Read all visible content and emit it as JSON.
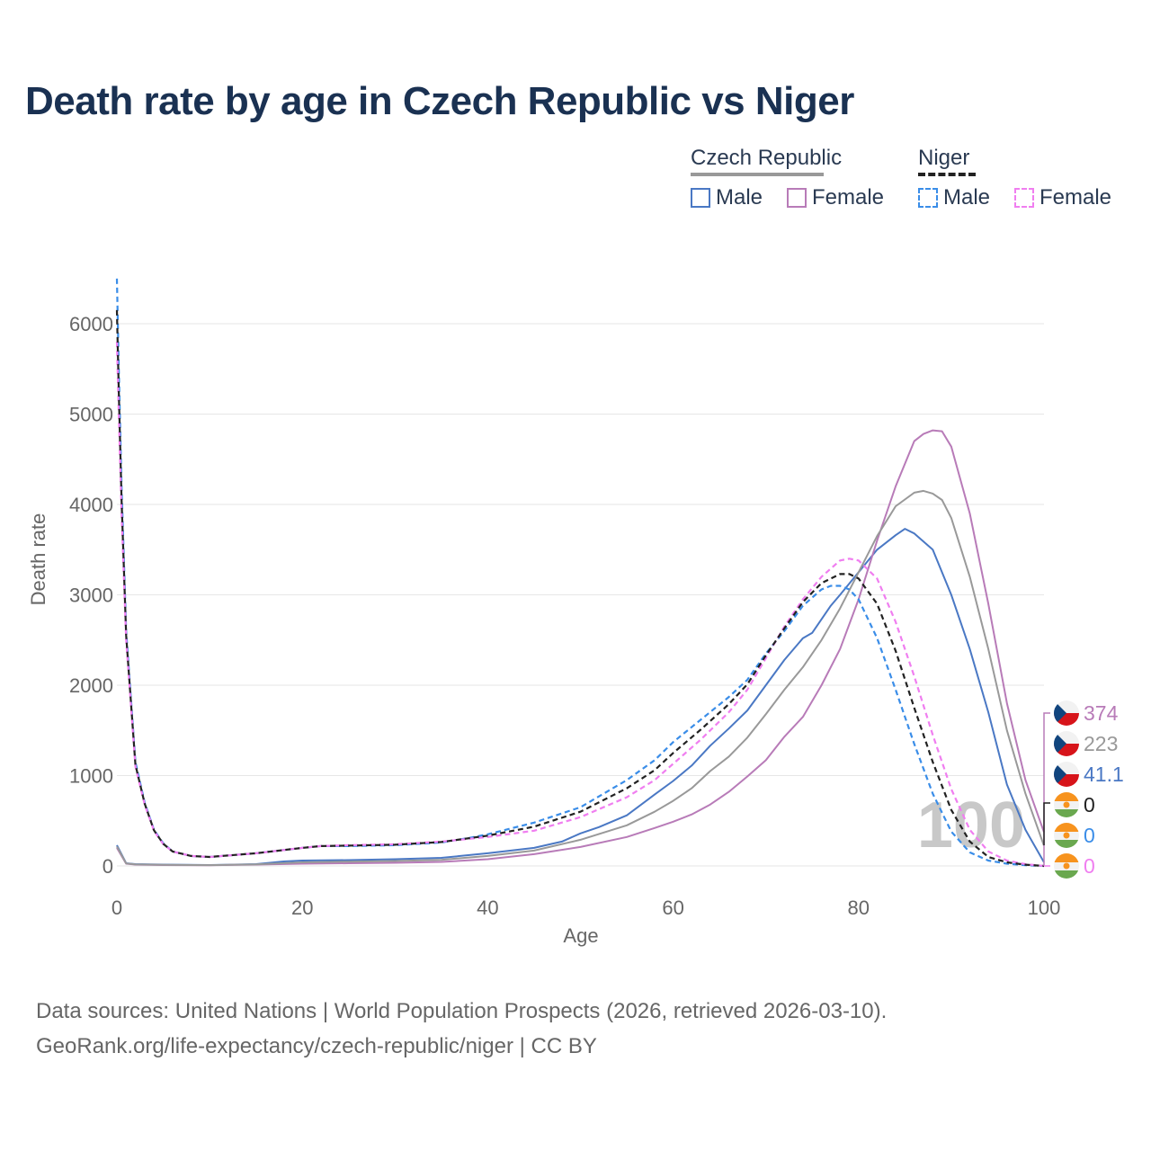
{
  "title": "Death rate by age in Czech Republic vs Niger",
  "legend": {
    "groups": [
      {
        "name": "Czech Republic",
        "items": [
          {
            "label": "Male",
            "color": "#4a78c4",
            "dash": false
          },
          {
            "label": "Female",
            "color": "#b87bb8",
            "dash": false
          }
        ],
        "group_color": "#999999",
        "group_dash": false
      },
      {
        "name": "Niger",
        "items": [
          {
            "label": "Male",
            "color": "#3a8de8",
            "dash": true
          },
          {
            "label": "Female",
            "color": "#f07ef0",
            "dash": true
          }
        ],
        "group_color": "#222222",
        "group_dash": true
      }
    ]
  },
  "footer": {
    "line1": "Data sources: United Nations | World Population Prospects (2026, retrieved 2026-03-10).",
    "line2": "GeoRank.org/life-expectancy/czech-republic/niger | CC BY"
  },
  "watermark_age": "100",
  "end_labels": [
    {
      "value": "374",
      "color": "#b87bb8",
      "flag": "czech"
    },
    {
      "value": "223",
      "color": "#999999",
      "flag": "czech"
    },
    {
      "value": "41.1",
      "color": "#4a78c4",
      "flag": "czech"
    },
    {
      "value": "0",
      "color": "#222222",
      "flag": "niger"
    },
    {
      "value": "0",
      "color": "#3a8de8",
      "flag": "niger"
    },
    {
      "value": "0",
      "color": "#f07ef0",
      "flag": "niger"
    }
  ],
  "chart_data": {
    "type": "line",
    "title": "Death rate by age in Czech Republic vs Niger",
    "xlabel": "Age",
    "ylabel": "Death rate",
    "xlim": [
      0,
      100
    ],
    "ylim": [
      0,
      6000
    ],
    "xticks": [
      0,
      20,
      40,
      60,
      80,
      100
    ],
    "yticks": [
      0,
      1000,
      2000,
      3000,
      4000,
      5000,
      6000
    ],
    "series": [
      {
        "name": "Czech Republic Male",
        "color": "#4a78c4",
        "dash": false,
        "x": [
          0,
          1,
          2,
          5,
          10,
          15,
          18,
          20,
          25,
          30,
          35,
          40,
          45,
          48,
          50,
          52,
          55,
          58,
          60,
          62,
          64,
          66,
          68,
          70,
          72,
          74,
          75,
          77,
          78,
          80,
          82,
          84,
          85,
          86,
          88,
          90,
          92,
          94,
          96,
          98,
          100
        ],
        "y": [
          230,
          30,
          20,
          15,
          10,
          20,
          50,
          60,
          65,
          75,
          90,
          140,
          200,
          270,
          360,
          430,
          560,
          790,
          940,
          1110,
          1330,
          1520,
          1720,
          2000,
          2280,
          2520,
          2580,
          2880,
          3000,
          3250,
          3500,
          3660,
          3730,
          3680,
          3500,
          3000,
          2400,
          1700,
          900,
          400,
          41.1
        ]
      },
      {
        "name": "Czech Republic Female",
        "color": "#b87bb8",
        "dash": false,
        "x": [
          0,
          1,
          2,
          5,
          10,
          15,
          20,
          25,
          30,
          35,
          40,
          45,
          50,
          55,
          58,
          60,
          62,
          64,
          66,
          68,
          70,
          72,
          74,
          76,
          78,
          80,
          82,
          84,
          86,
          87,
          88,
          89,
          90,
          92,
          94,
          96,
          98,
          100
        ],
        "y": [
          200,
          25,
          15,
          10,
          8,
          15,
          25,
          30,
          35,
          45,
          75,
          130,
          210,
          320,
          420,
          490,
          570,
          680,
          820,
          990,
          1170,
          1430,
          1650,
          2000,
          2400,
          2950,
          3600,
          4200,
          4700,
          4780,
          4820,
          4810,
          4640,
          3900,
          2900,
          1800,
          950,
          374
        ]
      },
      {
        "name": "Czech Republic Total",
        "color": "#999999",
        "dash": false,
        "x": [
          0,
          1,
          2,
          5,
          10,
          15,
          20,
          25,
          30,
          35,
          40,
          45,
          50,
          55,
          58,
          60,
          62,
          64,
          66,
          68,
          70,
          72,
          74,
          76,
          78,
          80,
          82,
          84,
          86,
          87,
          88,
          89,
          90,
          92,
          94,
          96,
          98,
          100
        ],
        "y": [
          215,
          28,
          18,
          12,
          9,
          18,
          40,
          48,
          55,
          68,
          110,
          170,
          290,
          450,
          600,
          720,
          860,
          1050,
          1210,
          1420,
          1680,
          1950,
          2200,
          2500,
          2850,
          3250,
          3650,
          3980,
          4130,
          4150,
          4120,
          4050,
          3850,
          3200,
          2400,
          1500,
          800,
          223
        ]
      },
      {
        "name": "Niger Male",
        "color": "#3a8de8",
        "dash": true,
        "x": [
          0,
          0.2,
          0.5,
          1,
          2,
          3,
          4,
          5,
          6,
          8,
          10,
          15,
          20,
          22,
          25,
          30,
          35,
          38,
          40,
          45,
          50,
          55,
          58,
          60,
          63,
          66,
          68,
          70,
          72,
          74,
          76,
          77,
          78,
          79,
          80,
          82,
          84,
          86,
          88,
          90,
          92,
          94,
          96,
          98,
          100
        ],
        "y": [
          6500,
          5500,
          4200,
          2600,
          1150,
          700,
          400,
          250,
          160,
          110,
          100,
          140,
          200,
          220,
          220,
          230,
          260,
          310,
          350,
          480,
          650,
          950,
          1170,
          1370,
          1620,
          1870,
          2060,
          2350,
          2600,
          2880,
          3060,
          3100,
          3100,
          3060,
          2950,
          2520,
          1950,
          1350,
          800,
          380,
          150,
          60,
          25,
          8,
          0
        ]
      },
      {
        "name": "Niger Female",
        "color": "#f07ef0",
        "dash": true,
        "x": [
          0,
          0.2,
          0.5,
          1,
          2,
          3,
          4,
          5,
          6,
          8,
          10,
          15,
          20,
          22,
          25,
          30,
          35,
          40,
          45,
          50,
          55,
          58,
          60,
          63,
          66,
          68,
          70,
          72,
          74,
          76,
          78,
          79,
          80,
          82,
          84,
          86,
          88,
          90,
          92,
          94,
          96,
          98,
          100
        ],
        "y": [
          5800,
          5000,
          3900,
          2500,
          1100,
          680,
          390,
          240,
          160,
          110,
          100,
          140,
          200,
          220,
          230,
          240,
          270,
          320,
          390,
          540,
          760,
          950,
          1130,
          1400,
          1700,
          1950,
          2300,
          2650,
          2950,
          3200,
          3380,
          3400,
          3380,
          3180,
          2700,
          2100,
          1450,
          850,
          400,
          160,
          60,
          20,
          0
        ]
      },
      {
        "name": "Niger Total",
        "color": "#222222",
        "dash": true,
        "x": [
          0,
          0.2,
          0.5,
          1,
          2,
          3,
          4,
          5,
          6,
          8,
          10,
          15,
          20,
          22,
          25,
          30,
          35,
          40,
          45,
          50,
          55,
          58,
          60,
          63,
          66,
          68,
          70,
          72,
          74,
          76,
          78,
          79,
          80,
          82,
          84,
          86,
          88,
          90,
          92,
          94,
          96,
          98,
          100
        ],
        "y": [
          6150,
          5250,
          4050,
          2550,
          1120,
          690,
          395,
          245,
          160,
          110,
          100,
          140,
          200,
          220,
          225,
          235,
          265,
          335,
          435,
          600,
          860,
          1060,
          1250,
          1510,
          1790,
          2010,
          2330,
          2630,
          2920,
          3130,
          3230,
          3230,
          3180,
          2900,
          2380,
          1750,
          1150,
          620,
          270,
          100,
          40,
          14,
          0
        ]
      }
    ]
  }
}
